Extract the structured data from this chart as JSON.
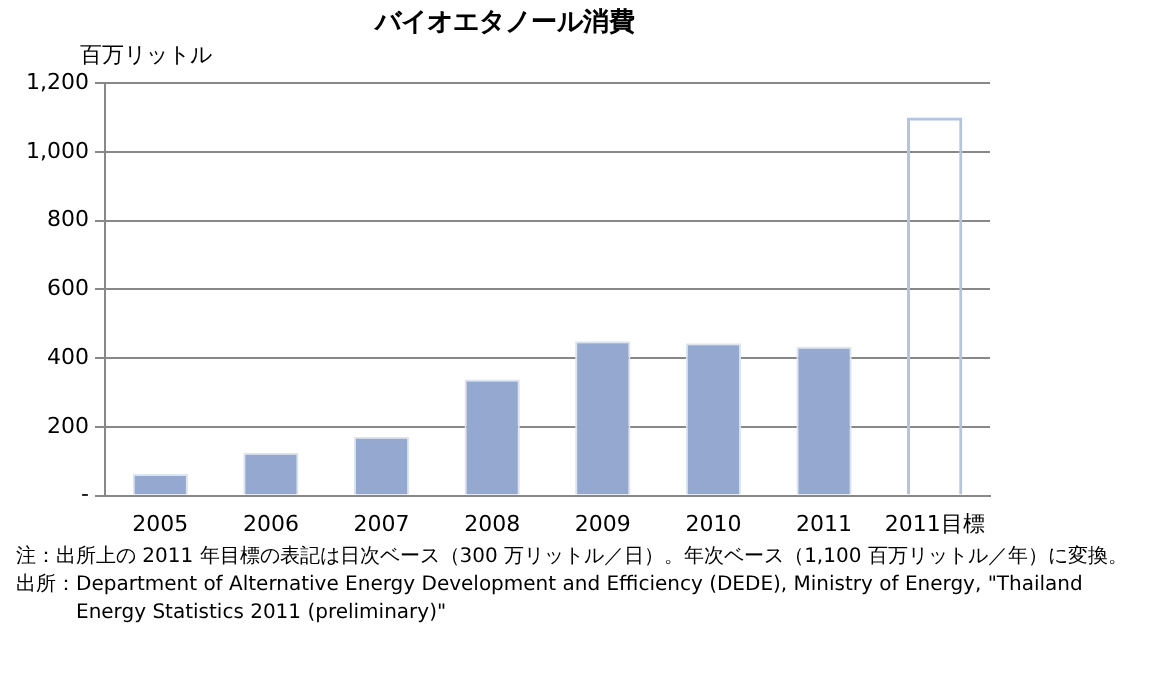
{
  "chart_data": {
    "type": "bar",
    "title": "バイオエタノール消費",
    "ylabel": "百万リットル",
    "categories": [
      "2005",
      "2006",
      "2007",
      "2008",
      "2009",
      "2010",
      "2011",
      "2011目標"
    ],
    "series": [
      {
        "color": "#95a9d0",
        "values": [
          63,
          125,
          171,
          338,
          449,
          443,
          433,
          null
        ]
      },
      {
        "color": "#b4c4de",
        "line_style": "dashed",
        "values": [
          null,
          null,
          null,
          null,
          null,
          null,
          null,
          1100
        ]
      }
    ],
    "ylim": [
      0,
      1200
    ],
    "yticks": [
      {
        "value": 0,
        "label": "-"
      },
      200,
      400,
      600,
      800,
      {
        "value": 1000,
        "label": "1,000"
      },
      {
        "value": 1200,
        "label": "1,200"
      }
    ],
    "grid": "y",
    "legend": false,
    "annotations": [
      "注：出所上の 2011 年目標の表記は日次ベース（300 万リットル／日）。年次ベース（1,100 百万リットル／年）に変換。",
      "出所：Department of Alternative Energy Development and Efficiency (DEDE), Ministry of Energy, \"Thailand Energy Statistics 2011 (preliminary)\""
    ]
  }
}
